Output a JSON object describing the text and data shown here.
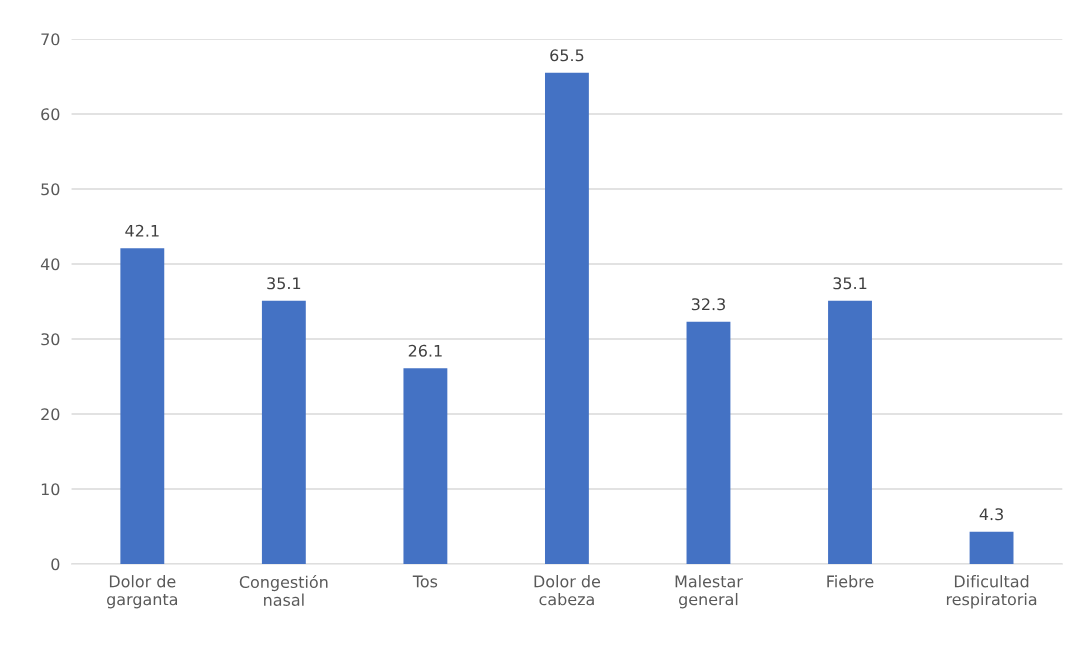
{
  "chart_data": {
    "type": "bar",
    "categories": [
      "Dolor de\ngarganta",
      "Congestión\nnasal",
      "Tos",
      "Dolor de\ncabeza",
      "Malestar\ngeneral",
      "Fiebre",
      "Dificultad\nrespiratoria"
    ],
    "values": [
      42.1,
      35.1,
      26.1,
      65.5,
      32.3,
      35.1,
      4.3
    ],
    "color": "#4472c4",
    "ylim": [
      0,
      70
    ],
    "yticks": [
      0,
      10,
      20,
      30,
      40,
      50,
      60,
      70
    ],
    "grid": "y",
    "data_labels": true,
    "legend": false
  }
}
